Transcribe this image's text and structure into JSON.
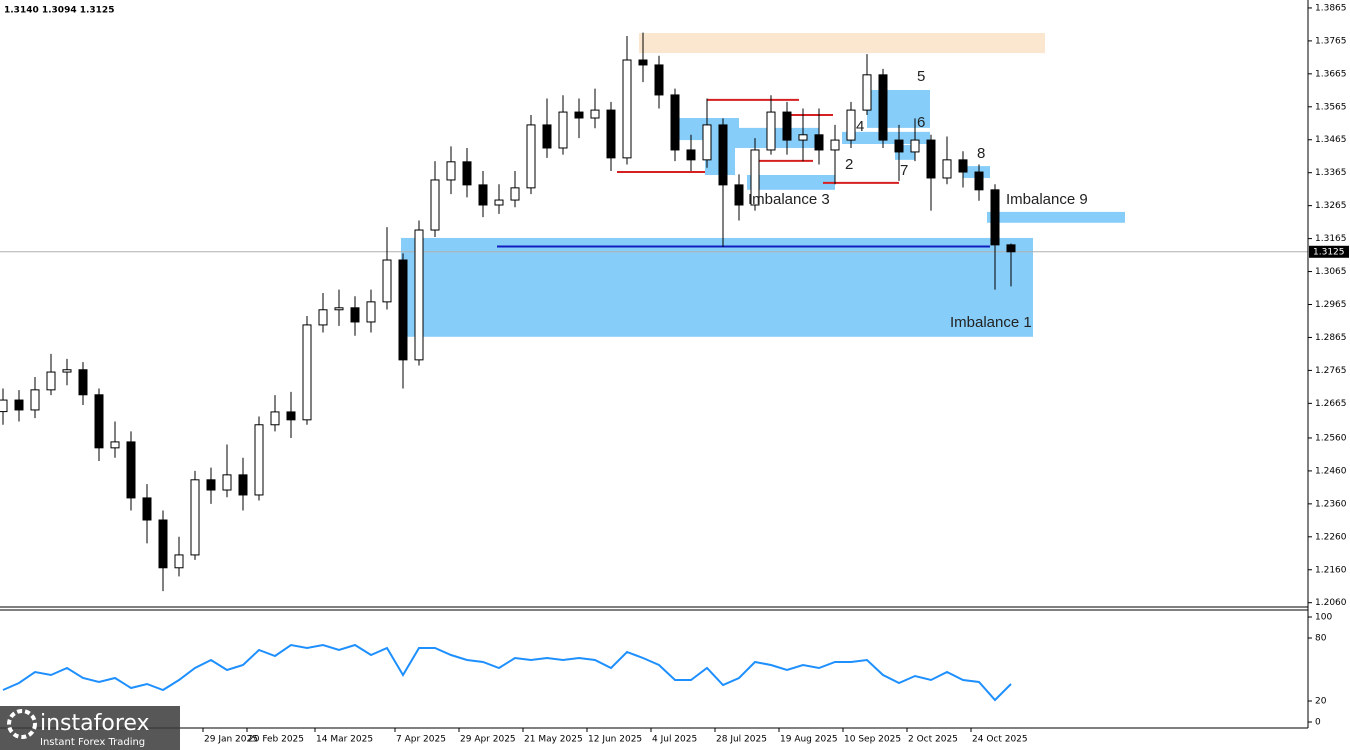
{
  "header": "1.3140 1.3094 1.3125",
  "watermark": {
    "brand": "instaforex",
    "tagline": "Instant Forex Trading"
  },
  "chart_data": [
    {
      "type": "candlestick",
      "up_color": "#ffffff",
      "down_color": "#000000",
      "x": [
        0,
        4,
        8,
        12,
        16,
        20,
        24,
        28,
        32,
        36,
        40,
        44,
        48,
        52,
        56,
        60,
        64,
        68,
        72,
        76,
        80,
        84,
        88,
        92,
        96,
        100,
        104,
        108,
        112,
        116,
        120,
        124,
        128,
        132,
        136,
        140,
        144,
        148,
        152,
        156,
        160,
        164,
        168,
        172,
        176,
        180,
        184,
        188,
        192,
        196,
        200,
        204,
        208,
        212,
        216,
        220,
        224,
        228,
        232,
        236,
        240,
        244,
        248,
        252
      ],
      "open": [
        1.264,
        1.2675,
        1.2645,
        1.2706,
        1.276,
        1.2767,
        1.2691,
        1.253,
        1.2548,
        1.2378,
        1.2311,
        1.2166,
        1.2205,
        1.2433,
        1.2402,
        1.2448,
        1.2387,
        1.26,
        1.2639,
        1.2615,
        1.2903,
        1.2949,
        1.2955,
        1.2912,
        1.2973,
        1.31,
        1.2797,
        1.3191,
        1.3343,
        1.3398,
        1.3328,
        1.3267,
        1.3282,
        1.3319,
        1.351,
        1.344,
        1.3549,
        1.3531,
        1.3555,
        1.341,
        1.3707,
        1.3692,
        1.3601,
        1.3434,
        1.3404,
        1.351,
        1.3328,
        1.3267,
        1.3434,
        1.3549,
        1.3464,
        1.348,
        1.3434,
        1.3464,
        1.3555,
        1.3662,
        1.3464,
        1.3428,
        1.3464,
        1.3349,
        1.3404,
        1.3367,
        1.3313,
        1.3146
      ],
      "high": [
        1.271,
        1.2705,
        1.2745,
        1.2815,
        1.28,
        1.279,
        1.271,
        1.261,
        1.258,
        1.242,
        1.234,
        1.226,
        1.246,
        1.247,
        1.254,
        1.25,
        1.2625,
        1.269,
        1.27,
        1.293,
        1.3,
        1.301,
        1.299,
        1.301,
        1.32,
        1.312,
        1.322,
        1.34,
        1.3445,
        1.344,
        1.337,
        1.333,
        1.337,
        1.354,
        1.359,
        1.36,
        1.359,
        1.362,
        1.358,
        1.378,
        1.379,
        1.372,
        1.362,
        1.348,
        1.359,
        1.353,
        1.336,
        1.347,
        1.36,
        1.358,
        1.356,
        1.356,
        1.351,
        1.358,
        1.3725,
        1.368,
        1.351,
        1.353,
        1.348,
        1.3475,
        1.343,
        1.339,
        1.333,
        1.315
      ],
      "low": [
        1.26,
        1.261,
        1.262,
        1.269,
        1.272,
        1.266,
        1.249,
        1.25,
        1.234,
        1.224,
        1.2095,
        1.214,
        1.219,
        1.236,
        1.238,
        1.234,
        1.237,
        1.258,
        1.256,
        1.26,
        1.288,
        1.29,
        1.287,
        1.288,
        1.295,
        1.271,
        1.278,
        1.317,
        1.33,
        1.329,
        1.323,
        1.324,
        1.326,
        1.33,
        1.341,
        1.342,
        1.347,
        1.35,
        1.337,
        1.339,
        1.364,
        1.356,
        1.34,
        1.337,
        1.338,
        1.314,
        1.322,
        1.325,
        1.342,
        1.342,
        1.34,
        1.339,
        1.333,
        1.344,
        1.354,
        1.344,
        1.334,
        1.34,
        1.325,
        1.333,
        1.332,
        1.328,
        1.301,
        1.302
      ],
      "close": [
        1.2675,
        1.2645,
        1.2706,
        1.276,
        1.2767,
        1.2691,
        1.253,
        1.2548,
        1.2378,
        1.2311,
        1.2166,
        1.2205,
        1.2433,
        1.2402,
        1.2448,
        1.2387,
        1.26,
        1.2639,
        1.2615,
        1.2903,
        1.2949,
        1.2955,
        1.2912,
        1.2973,
        1.31,
        1.2797,
        1.3191,
        1.3343,
        1.3398,
        1.3328,
        1.3267,
        1.3282,
        1.3319,
        1.351,
        1.344,
        1.3549,
        1.3531,
        1.3555,
        1.341,
        1.3707,
        1.3692,
        1.3601,
        1.3434,
        1.3404,
        1.351,
        1.3328,
        1.3267,
        1.3434,
        1.3549,
        1.3464,
        1.348,
        1.3434,
        1.3464,
        1.3555,
        1.3662,
        1.3464,
        1.3428,
        1.3464,
        1.3349,
        1.3404,
        1.3367,
        1.3313,
        1.3146,
        1.3125
      ],
      "xlim": [
        0,
        326.25
      ],
      "ylim": [
        1.205,
        1.388
      ],
      "yticks": [
        1.3865,
        1.3765,
        1.3665,
        1.3565,
        1.3465,
        1.3365,
        1.3265,
        1.3165,
        1.3065,
        1.2965,
        1.2865,
        1.2765,
        1.2665,
        {
          "value": 1.256,
          "label": "1.2560"
        },
        {
          "value": 1.246,
          "label": "1.2460"
        },
        {
          "value": 1.236,
          "label": "1.2360"
        },
        {
          "value": 1.226,
          "label": "1.2260"
        },
        {
          "value": 1.216,
          "label": "1.2160"
        },
        {
          "value": 1.206,
          "label": "1.2060"
        }
      ],
      "xticks": [
        {
          "value": 50,
          "label": "29 Jan 2025"
        },
        {
          "value": 61,
          "label": "20 Feb 2025"
        },
        {
          "value": 78,
          "label": "14 Mar 2025"
        },
        {
          "value": 98,
          "label": "7 Apr 2025"
        },
        {
          "value": 114,
          "label": "29 Apr 2025"
        },
        {
          "value": 130,
          "label": "21 May 2025"
        },
        {
          "value": 146,
          "label": "12 Jun 2025"
        },
        {
          "value": 162,
          "label": "4 Jul 2025"
        },
        {
          "value": 178,
          "label": "28 Jul 2025"
        },
        {
          "value": 194,
          "label": "19 Aug 2025"
        },
        {
          "value": 210,
          "label": "10 Sep 2025"
        },
        {
          "value": 226,
          "label": "2 Oct 2025"
        },
        {
          "value": 242,
          "label": "24 Oct 2025"
        }
      ],
      "last_price": 1.3125,
      "zones": [
        {
          "x": [
            159,
            260.5
          ],
          "y": [
            1.3728,
            1.3789
          ],
          "color": "#fbe7cf"
        },
        {
          "label": "Imbalance 1",
          "x": [
            99.5,
            257.5
          ],
          "y": [
            1.2867,
            1.3167
          ],
          "color": "#87cdf9"
        },
        {
          "label": "Imbalance 9",
          "x": [
            246,
            280.5
          ],
          "y": [
            1.3213,
            1.3246
          ],
          "color": "#87cdf9"
        },
        {
          "label": "Imbalance 3",
          "x": [
            186,
            208
          ],
          "y": [
            1.3313,
            1.3358
          ],
          "color": "#87cdf9"
        },
        {
          "label": "5",
          "x": [
            216,
            231.75
          ],
          "y": [
            1.3501,
            1.3616
          ],
          "color": "#87cdf9"
        },
        {
          "label": "6",
          "x": [
            209.75,
            231.75
          ],
          "y": [
            1.3452,
            1.3489
          ],
          "color": "#87cdf9"
        },
        {
          "label": "4",
          "x": [
            167,
            184
          ],
          "y": [
            1.3464,
            1.3531
          ],
          "color": "#87cdf9"
        },
        {
          "label": "2",
          "x": [
            181,
            204
          ],
          "y": [
            1.344,
            1.3501
          ],
          "color": "#87cdf9"
        },
        {
          "label": "7",
          "x": [
            223,
            228
          ],
          "y": [
            1.3404,
            1.3449
          ],
          "color": "#87cdf9"
        },
        {
          "label": "8",
          "x": [
            240,
            246.75
          ],
          "y": [
            1.3349,
            1.3385
          ],
          "color": "#87cdf9"
        },
        {
          "x": [
            175.5,
            183
          ],
          "y": [
            1.3358,
            1.3531
          ],
          "color": "#87cdf9"
        }
      ],
      "levels": [
        {
          "price": 1.3367,
          "x": [
            153.5,
            175.5
          ],
          "color": "#d42020"
        },
        {
          "price": 1.3586,
          "x": [
            176,
            199
          ],
          "color": "#d42020"
        },
        {
          "price": 1.354,
          "x": [
            197,
            207.5
          ],
          "color": "#d42020"
        },
        {
          "price": 1.3401,
          "x": [
            188.5,
            202.5
          ],
          "color": "#d42020"
        },
        {
          "price": 1.3334,
          "x": [
            205,
            224
          ],
          "color": "#d42020"
        },
        {
          "price": 1.3141,
          "x": [
            123.5,
            246.75
          ],
          "color": "#1020c0"
        }
      ]
    },
    {
      "type": "line",
      "color": "#1e8fff",
      "values": [
        30.5,
        37.1,
        47.6,
        44.8,
        51.4,
        41.9,
        38.1,
        41.9,
        32.4,
        36.2,
        30.5,
        40,
        51.4,
        59,
        49.5,
        54.3,
        68.6,
        62.9,
        73.3,
        70.5,
        73.3,
        68.6,
        73.3,
        63.8,
        70.5,
        44.8,
        70.5,
        70.5,
        63.8,
        59,
        57.1,
        51.4,
        61,
        59,
        61,
        59,
        61,
        59,
        51.4,
        66.7,
        61,
        54.3,
        40,
        40,
        51.4,
        35.2,
        41.9,
        57.1,
        54.3,
        49.5,
        54.3,
        51.4,
        57.1,
        57.1,
        59,
        44.8,
        37.1,
        43.8,
        40,
        47.6,
        40,
        38.1,
        21,
        36.2
      ],
      "ylim": [
        0,
        100
      ],
      "yticks": [
        100,
        80,
        20,
        0
      ]
    }
  ]
}
